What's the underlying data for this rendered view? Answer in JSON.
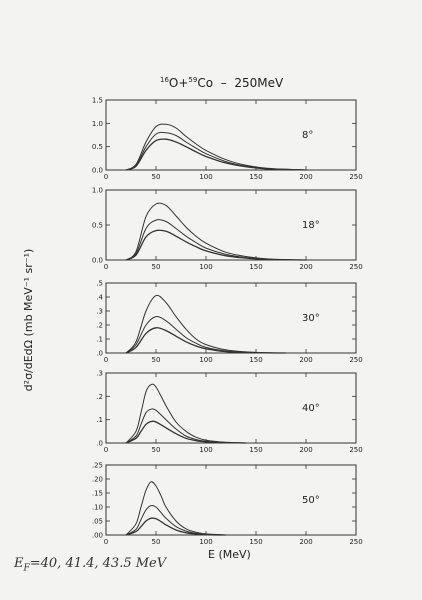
{
  "figure": {
    "title_parts": {
      "a_mass": "16",
      "a_sym": "O+",
      "b_mass": "59",
      "b_sym": "Co",
      "rest": "  –  250MeV"
    },
    "ylabel": "d²σ/dEdΩ  (mb MeV⁻¹ sr⁻¹)",
    "xlabel": "E  (MeV)",
    "note": "EF = 40, 41.4, 43.5 MeV",
    "note_parts": {
      "main": "E",
      "sub": "F",
      "rest": "=40, 41.4, 43.5 MeV"
    }
  },
  "chart_data": [
    {
      "type": "line",
      "angle_label": "8°",
      "xlim": [
        0,
        250
      ],
      "ylim": [
        0,
        1.5
      ],
      "xticks": [
        0,
        50,
        100,
        150,
        200,
        250
      ],
      "xticklabels": [
        "0",
        "50",
        "100",
        "150",
        "200",
        "250"
      ],
      "yticks": [
        0,
        0.5,
        1.0,
        1.5
      ],
      "yticklabels": [
        "0.0",
        "0.5",
        "1.0",
        "1.5"
      ],
      "x": [
        20,
        30,
        40,
        50,
        60,
        70,
        80,
        90,
        100,
        120,
        140,
        160,
        180,
        200
      ],
      "series": [
        {
          "values": [
            0.0,
            0.12,
            0.6,
            0.93,
            0.98,
            0.9,
            0.72,
            0.56,
            0.42,
            0.22,
            0.1,
            0.04,
            0.015,
            0.0
          ]
        },
        {
          "values": [
            0.0,
            0.1,
            0.5,
            0.77,
            0.8,
            0.74,
            0.6,
            0.47,
            0.35,
            0.18,
            0.08,
            0.03,
            0.012,
            0.0
          ]
        },
        {
          "values": [
            0.0,
            0.08,
            0.42,
            0.63,
            0.66,
            0.6,
            0.5,
            0.39,
            0.29,
            0.15,
            0.07,
            0.025,
            0.01,
            0.0
          ]
        }
      ]
    },
    {
      "type": "line",
      "angle_label": "18°",
      "xlim": [
        0,
        250
      ],
      "ylim": [
        0,
        1.0
      ],
      "xticks": [
        0,
        50,
        100,
        150,
        200,
        250
      ],
      "xticklabels": [
        "0",
        "50",
        "100",
        "150",
        "200",
        "250"
      ],
      "yticks": [
        0,
        0.5,
        1.0
      ],
      "yticklabels": [
        "0.0",
        "0.5",
        "1.0"
      ],
      "x": [
        20,
        30,
        40,
        50,
        60,
        70,
        80,
        90,
        100,
        120,
        140,
        160,
        180,
        200
      ],
      "series": [
        {
          "values": [
            0.0,
            0.12,
            0.62,
            0.8,
            0.78,
            0.63,
            0.47,
            0.34,
            0.24,
            0.11,
            0.05,
            0.018,
            0.006,
            0.0
          ]
        },
        {
          "values": [
            0.0,
            0.09,
            0.45,
            0.57,
            0.55,
            0.45,
            0.34,
            0.25,
            0.17,
            0.08,
            0.035,
            0.013,
            0.004,
            0.0
          ]
        },
        {
          "values": [
            0.0,
            0.07,
            0.33,
            0.42,
            0.41,
            0.34,
            0.26,
            0.19,
            0.13,
            0.06,
            0.027,
            0.01,
            0.003,
            0.0
          ]
        }
      ]
    },
    {
      "type": "line",
      "angle_label": "30°",
      "xlim": [
        0,
        250
      ],
      "ylim": [
        0,
        0.5
      ],
      "xticks": [
        0,
        50,
        100,
        150,
        200,
        250
      ],
      "xticklabels": [
        "0",
        "50",
        "100",
        "150",
        "200",
        "250"
      ],
      "yticks": [
        0,
        0.1,
        0.2,
        0.3,
        0.4,
        0.5
      ],
      "yticklabels": [
        ".0",
        ".1",
        ".2",
        ".3",
        ".4",
        ".5"
      ],
      "x": [
        20,
        30,
        40,
        50,
        60,
        70,
        80,
        90,
        100,
        120,
        140,
        160,
        180
      ],
      "series": [
        {
          "values": [
            0.0,
            0.08,
            0.3,
            0.41,
            0.36,
            0.26,
            0.17,
            0.1,
            0.06,
            0.022,
            0.008,
            0.002,
            0.0
          ]
        },
        {
          "values": [
            0.0,
            0.06,
            0.2,
            0.26,
            0.23,
            0.17,
            0.11,
            0.07,
            0.04,
            0.014,
            0.005,
            0.0015,
            0.0
          ]
        },
        {
          "values": [
            0.0,
            0.04,
            0.14,
            0.18,
            0.16,
            0.12,
            0.08,
            0.05,
            0.03,
            0.01,
            0.004,
            0.001,
            0.0
          ]
        }
      ]
    },
    {
      "type": "line",
      "angle_label": "40°",
      "xlim": [
        0,
        250
      ],
      "ylim": [
        0,
        0.3
      ],
      "xticks": [
        0,
        50,
        100,
        150,
        200,
        250
      ],
      "xticklabels": [
        "0",
        "50",
        "100",
        "150",
        "200",
        "250"
      ],
      "yticks": [
        0,
        0.1,
        0.2,
        0.3
      ],
      "yticklabels": [
        ".0",
        ".1",
        ".2",
        ".3"
      ],
      "x": [
        20,
        30,
        35,
        40,
        45,
        50,
        60,
        70,
        80,
        90,
        100,
        120,
        140
      ],
      "series": [
        {
          "values": [
            0.0,
            0.05,
            0.13,
            0.22,
            0.25,
            0.24,
            0.16,
            0.09,
            0.05,
            0.025,
            0.012,
            0.003,
            0.0
          ]
        },
        {
          "values": [
            0.0,
            0.03,
            0.08,
            0.13,
            0.145,
            0.14,
            0.1,
            0.06,
            0.03,
            0.015,
            0.007,
            0.002,
            0.0
          ]
        },
        {
          "values": [
            0.0,
            0.02,
            0.05,
            0.08,
            0.092,
            0.09,
            0.065,
            0.04,
            0.02,
            0.01,
            0.005,
            0.0015,
            0.0
          ]
        }
      ]
    },
    {
      "type": "line",
      "angle_label": "50°",
      "xlim": [
        0,
        250
      ],
      "ylim": [
        0,
        0.25
      ],
      "xticks": [
        0,
        50,
        100,
        150,
        200,
        250
      ],
      "xticklabels": [
        "0",
        "50",
        "100",
        "150",
        "200",
        "250"
      ],
      "yticks": [
        0,
        0.05,
        0.1,
        0.15,
        0.2,
        0.25
      ],
      "yticklabels": [
        ".00",
        ".05",
        ".10",
        ".15",
        ".20",
        ".25"
      ],
      "x": [
        20,
        30,
        35,
        40,
        45,
        50,
        55,
        60,
        70,
        80,
        90,
        100,
        120
      ],
      "series": [
        {
          "values": [
            0.0,
            0.04,
            0.1,
            0.16,
            0.19,
            0.175,
            0.14,
            0.1,
            0.05,
            0.022,
            0.01,
            0.004,
            0.0
          ]
        },
        {
          "values": [
            0.0,
            0.02,
            0.055,
            0.09,
            0.105,
            0.1,
            0.08,
            0.06,
            0.03,
            0.014,
            0.006,
            0.002,
            0.0
          ]
        },
        {
          "values": [
            0.0,
            0.012,
            0.03,
            0.05,
            0.06,
            0.058,
            0.048,
            0.036,
            0.018,
            0.008,
            0.004,
            0.001,
            0.0
          ]
        }
      ]
    }
  ]
}
